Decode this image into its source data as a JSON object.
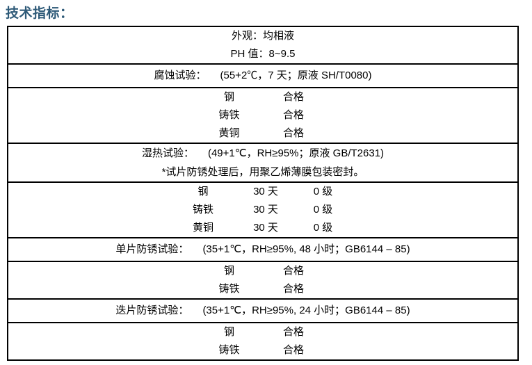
{
  "title": "技术指标：",
  "colors": {
    "title_blue": "#2E5A78",
    "table_border": "#000000",
    "text": "#000000"
  },
  "table": {
    "appearance": "外观：均相液",
    "ph": "PH 值：8~9.5",
    "corrosion": {
      "label": "腐蚀试验：",
      "condition": "(55+2℃，7 天；原液  SH/T0080)"
    },
    "corrosion_results": [
      {
        "metal": "钢",
        "result": "合格"
      },
      {
        "metal": "铸铁",
        "result": "合格"
      },
      {
        "metal": "黄铜",
        "result": "合格"
      }
    ],
    "damp_heat": {
      "label": "湿热试验：",
      "condition": "(49+1℃，RH≥95%；原液  GB/T2631)",
      "note": "*试片防锈处理后，用聚乙烯薄膜包装密封。"
    },
    "damp_heat_results": [
      {
        "metal": "钢",
        "duration": "30 天",
        "grade": "0 级"
      },
      {
        "metal": "铸铁",
        "duration": "30 天",
        "grade": "0 级"
      },
      {
        "metal": "黄铜",
        "duration": "30 天",
        "grade": "0 级"
      }
    ],
    "single_panel": {
      "label": "单片防锈试验：",
      "condition": "(35+1℃，RH≥95%, 48 小时；GB6144 – 85)"
    },
    "single_panel_results": [
      {
        "metal": "钢",
        "result": "合格"
      },
      {
        "metal": "铸铁",
        "result": "合格"
      }
    ],
    "stacked_panel": {
      "label": "迭片防锈试验：",
      "condition": "(35+1℃，RH≥95%, 24 小时；GB6144 – 85)"
    },
    "stacked_panel_results": [
      {
        "metal": "钢",
        "result": "合格"
      },
      {
        "metal": "铸铁",
        "result": "合格"
      }
    ]
  }
}
